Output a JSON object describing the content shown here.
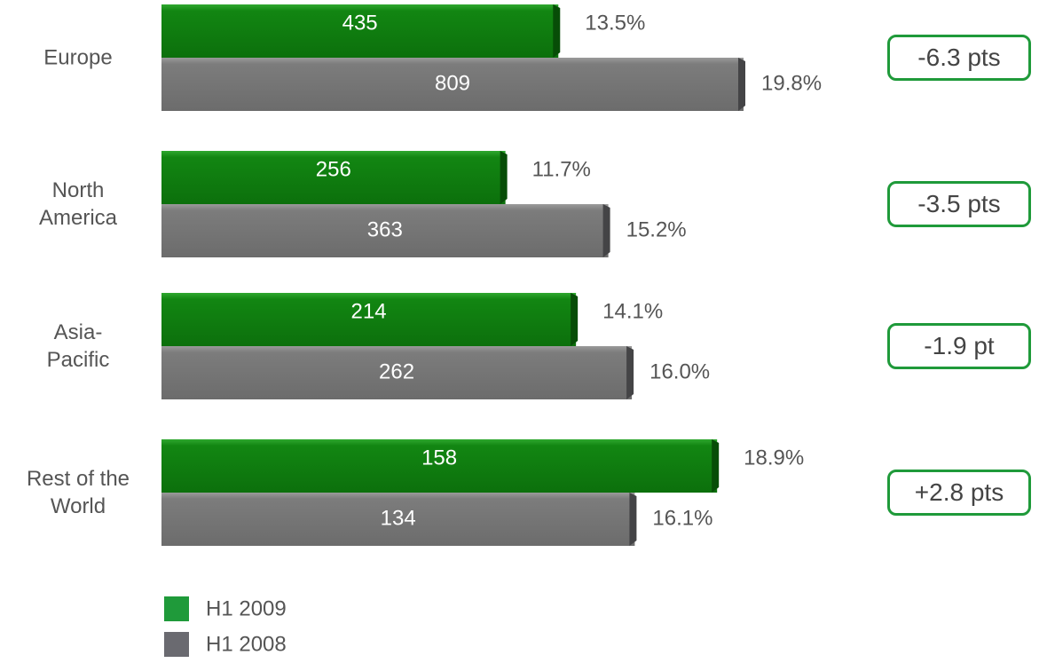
{
  "chart_data": {
    "type": "bar",
    "orientation": "horizontal",
    "categories": [
      "Europe",
      "North America",
      "Asia-Pacific",
      "Rest of the World"
    ],
    "series": [
      {
        "name": "H1 2009",
        "color": "#1f9a3a",
        "values": [
          13.5,
          11.7,
          14.1,
          18.9
        ],
        "value_labels": [
          "13.5%",
          "11.7%",
          "14.1%",
          "18.9%"
        ],
        "amounts": [
          435,
          256,
          214,
          158
        ]
      },
      {
        "name": "H1 2008",
        "color": "#6a6a70",
        "values": [
          19.8,
          15.2,
          16.0,
          16.1
        ],
        "value_labels": [
          "19.8%",
          "15.2%",
          "16.0%",
          "16.1%"
        ],
        "amounts": [
          809,
          363,
          262,
          134
        ]
      }
    ],
    "annotations": [
      "-6.3 pts",
      "-3.5 pts",
      "-1.9 pt",
      "+2.8 pts"
    ]
  }
}
